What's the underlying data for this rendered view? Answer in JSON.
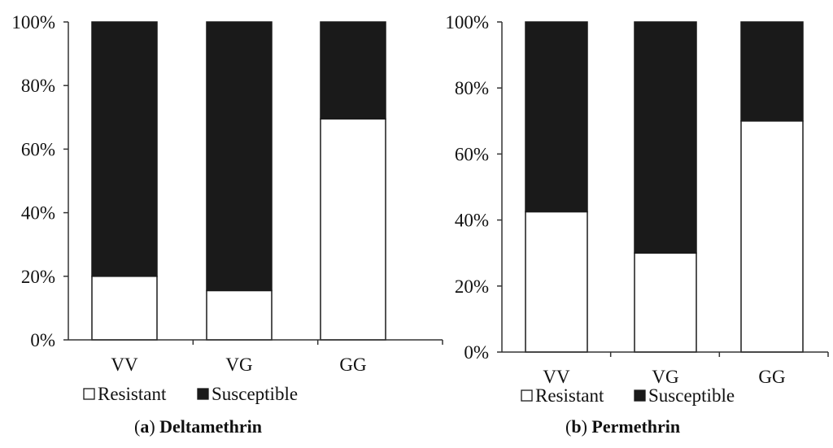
{
  "colors": {
    "susceptible": "#1a1a1a",
    "resistant": "#ffffff",
    "outline": "#1a1a1a",
    "axis": "#333333"
  },
  "chart_data": [
    {
      "type": "bar",
      "stacked": true,
      "percent": true,
      "panel_letter": "a",
      "title": "Deltamethrin",
      "categories": [
        "VV",
        "VG",
        "GG"
      ],
      "series": [
        {
          "name": "Resistant",
          "values": [
            20,
            15.5,
            69.5
          ]
        },
        {
          "name": "Susceptible",
          "values": [
            80,
            84.5,
            30.5
          ]
        }
      ],
      "yticks": [
        "0%",
        "20%",
        "40%",
        "60%",
        "80%",
        "100%"
      ],
      "ylim": [
        0,
        100
      ],
      "legend": [
        "Resistant",
        "Susceptible"
      ],
      "grid": false
    },
    {
      "type": "bar",
      "stacked": true,
      "percent": true,
      "panel_letter": "b",
      "title": "Permethrin",
      "categories": [
        "VV",
        "VG",
        "GG"
      ],
      "series": [
        {
          "name": "Resistant",
          "values": [
            42.5,
            30,
            70
          ]
        },
        {
          "name": "Susceptible",
          "values": [
            57.5,
            70,
            30
          ]
        }
      ],
      "yticks": [
        "0%",
        "20%",
        "40%",
        "60%",
        "80%",
        "100%"
      ],
      "ylim": [
        0,
        100
      ],
      "legend": [
        "Resistant",
        "Susceptible"
      ],
      "grid": false
    }
  ]
}
